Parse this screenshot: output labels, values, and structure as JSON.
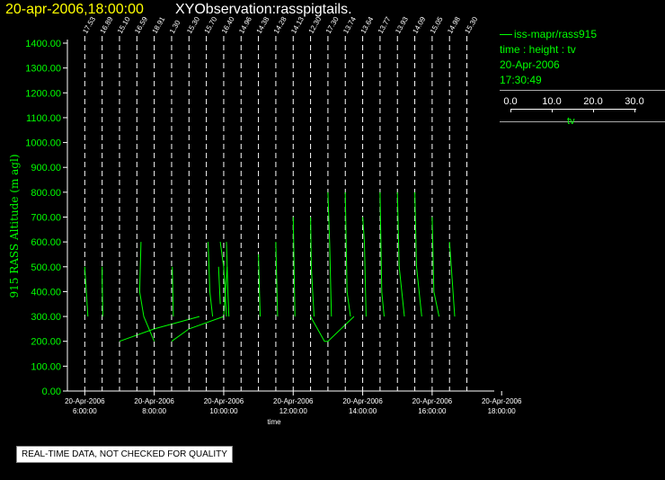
{
  "header": {
    "date_time": "20-apr-2006,18:00:00",
    "title": "XYObservation:rasspigtails."
  },
  "legend": {
    "series": "iss-mapr/rass915",
    "axes": "time : height : tv",
    "date": "20-Apr-2006",
    "time": "17:30:49",
    "scale_ticks": [
      "0.0",
      "10.0",
      "20.0",
      "30.0"
    ],
    "scale_unit": "tv"
  },
  "footer": {
    "quality_note": "REAL-TIME DATA, NOT CHECKED FOR QUALITY"
  },
  "colors": {
    "data": "#00ff00",
    "axis": "#ffffff",
    "date_title": "#ffff00"
  },
  "chart_data": {
    "type": "line",
    "ylabel": "915 RASS Altitude (m agl)",
    "xlabel": "time",
    "ylim": [
      0,
      1400
    ],
    "yticks": [
      "0.00",
      "100.00",
      "200.00",
      "300.00",
      "400.00",
      "500.00",
      "600.00",
      "700.00",
      "800.00",
      "900.00",
      "1000.00",
      "1100.00",
      "1200.00",
      "1300.00",
      "1400.00"
    ],
    "xlim_hours": [
      5.5,
      17.4
    ],
    "xticks": [
      {
        "hour": 6,
        "line1": "20-Apr-2006",
        "line2": "6:00:00"
      },
      {
        "hour": 8,
        "line1": "20-Apr-2006",
        "line2": "8:00:00"
      },
      {
        "hour": 10,
        "line1": "20-Apr-2006",
        "line2": "10:00:00"
      },
      {
        "hour": 12,
        "line1": "20-Apr-2006",
        "line2": "12:00:00"
      },
      {
        "hour": 14,
        "line1": "20-Apr-2006",
        "line2": "14:00:00"
      },
      {
        "hour": 16,
        "line1": "20-Apr-2006",
        "line2": "16:00:00"
      },
      {
        "hour": 18,
        "line1": "20-Apr-2006",
        "line2": "18:00:00"
      }
    ],
    "tv_hour_per_unit": 0.04,
    "profiles": [
      {
        "hour": 6.0,
        "label": "17.53",
        "pts": [
          [
            6.0,
            500
          ],
          [
            6.09,
            300
          ]
        ]
      },
      {
        "hour": 6.5,
        "label": "16.89",
        "pts": [
          [
            6.5,
            500
          ],
          [
            6.5,
            450
          ],
          [
            6.52,
            300
          ]
        ]
      },
      {
        "hour": 7.0,
        "label": "15.10",
        "pts": [
          [
            7.0,
            200
          ],
          [
            8.0,
            250
          ],
          [
            9.3,
            300
          ]
        ]
      },
      {
        "hour": 7.5,
        "label": "16.59",
        "pts": [
          [
            7.62,
            600
          ],
          [
            7.58,
            400
          ],
          [
            7.7,
            300
          ],
          [
            8.0,
            200
          ]
        ]
      },
      {
        "hour": 8.0,
        "label": "18.91",
        "pts": [
          [
            8.5,
            200
          ],
          [
            9.0,
            250
          ],
          [
            10.0,
            300
          ],
          [
            10.1,
            500
          ]
        ]
      },
      {
        "hour": 8.5,
        "label": "1.30",
        "pts": [
          [
            8.52,
            500
          ],
          [
            8.55,
            300
          ]
        ]
      },
      {
        "hour": 9.0,
        "label": "15.30",
        "pts": [
          [
            9.85,
            500
          ],
          [
            9.9,
            350
          ]
        ]
      },
      {
        "hour": 9.5,
        "label": "15.70",
        "pts": [
          [
            9.55,
            600
          ],
          [
            9.6,
            400
          ],
          [
            9.68,
            300
          ]
        ]
      },
      {
        "hour": 10.0,
        "label": "16.40",
        "pts": [
          [
            9.9,
            600
          ],
          [
            10.0,
            500
          ],
          [
            10.08,
            300
          ]
        ]
      },
      {
        "hour": 10.5,
        "label": "14.96",
        "pts": [
          [
            10.08,
            600
          ],
          [
            10.12,
            400
          ],
          [
            10.15,
            300
          ]
        ]
      },
      {
        "hour": 11.0,
        "label": "14.38",
        "pts": [
          [
            11.0,
            550
          ],
          [
            11.05,
            300
          ]
        ]
      },
      {
        "hour": 11.5,
        "label": "14.28",
        "pts": [
          [
            11.5,
            600
          ],
          [
            11.55,
            300
          ]
        ]
      },
      {
        "hour": 12.0,
        "label": "14.13",
        "pts": [
          [
            12.0,
            700
          ],
          [
            12.05,
            300
          ]
        ]
      },
      {
        "hour": 12.5,
        "label": "12.30",
        "pts": [
          [
            12.5,
            700
          ],
          [
            12.52,
            500
          ],
          [
            12.6,
            300
          ]
        ]
      },
      {
        "hour": 13.0,
        "label": "17.30",
        "pts": [
          [
            12.5,
            300
          ],
          [
            12.9,
            200
          ],
          [
            13.0,
            200
          ],
          [
            13.75,
            300
          ]
        ]
      },
      {
        "hour": 13.5,
        "label": "13.74",
        "pts": [
          [
            13.0,
            800
          ],
          [
            13.05,
            600
          ],
          [
            13.1,
            300
          ]
        ]
      },
      {
        "hour": 14.0,
        "label": "13.64",
        "pts": [
          [
            13.5,
            800
          ],
          [
            13.55,
            400
          ],
          [
            13.65,
            300
          ]
        ]
      },
      {
        "hour": 14.5,
        "label": "13.77",
        "pts": [
          [
            14.0,
            700
          ],
          [
            14.05,
            600
          ],
          [
            14.1,
            300
          ]
        ]
      },
      {
        "hour": 15.0,
        "label": "13.93",
        "pts": [
          [
            14.5,
            800
          ],
          [
            14.55,
            400
          ],
          [
            14.62,
            300
          ]
        ]
      },
      {
        "hour": 15.5,
        "label": "14.09",
        "pts": [
          [
            15.0,
            800
          ],
          [
            15.05,
            500
          ],
          [
            15.2,
            300
          ]
        ]
      },
      {
        "hour": 16.0,
        "label": "15.05",
        "pts": [
          [
            15.5,
            800
          ],
          [
            15.55,
            500
          ],
          [
            15.7,
            300
          ]
        ]
      },
      {
        "hour": 16.5,
        "label": "14.98",
        "pts": [
          [
            16.0,
            700
          ],
          [
            16.05,
            400
          ],
          [
            16.2,
            300
          ]
        ]
      },
      {
        "hour": 17.0,
        "label": "15.30",
        "pts": [
          [
            16.5,
            600
          ],
          [
            16.6,
            400
          ],
          [
            16.65,
            300
          ]
        ]
      }
    ]
  }
}
